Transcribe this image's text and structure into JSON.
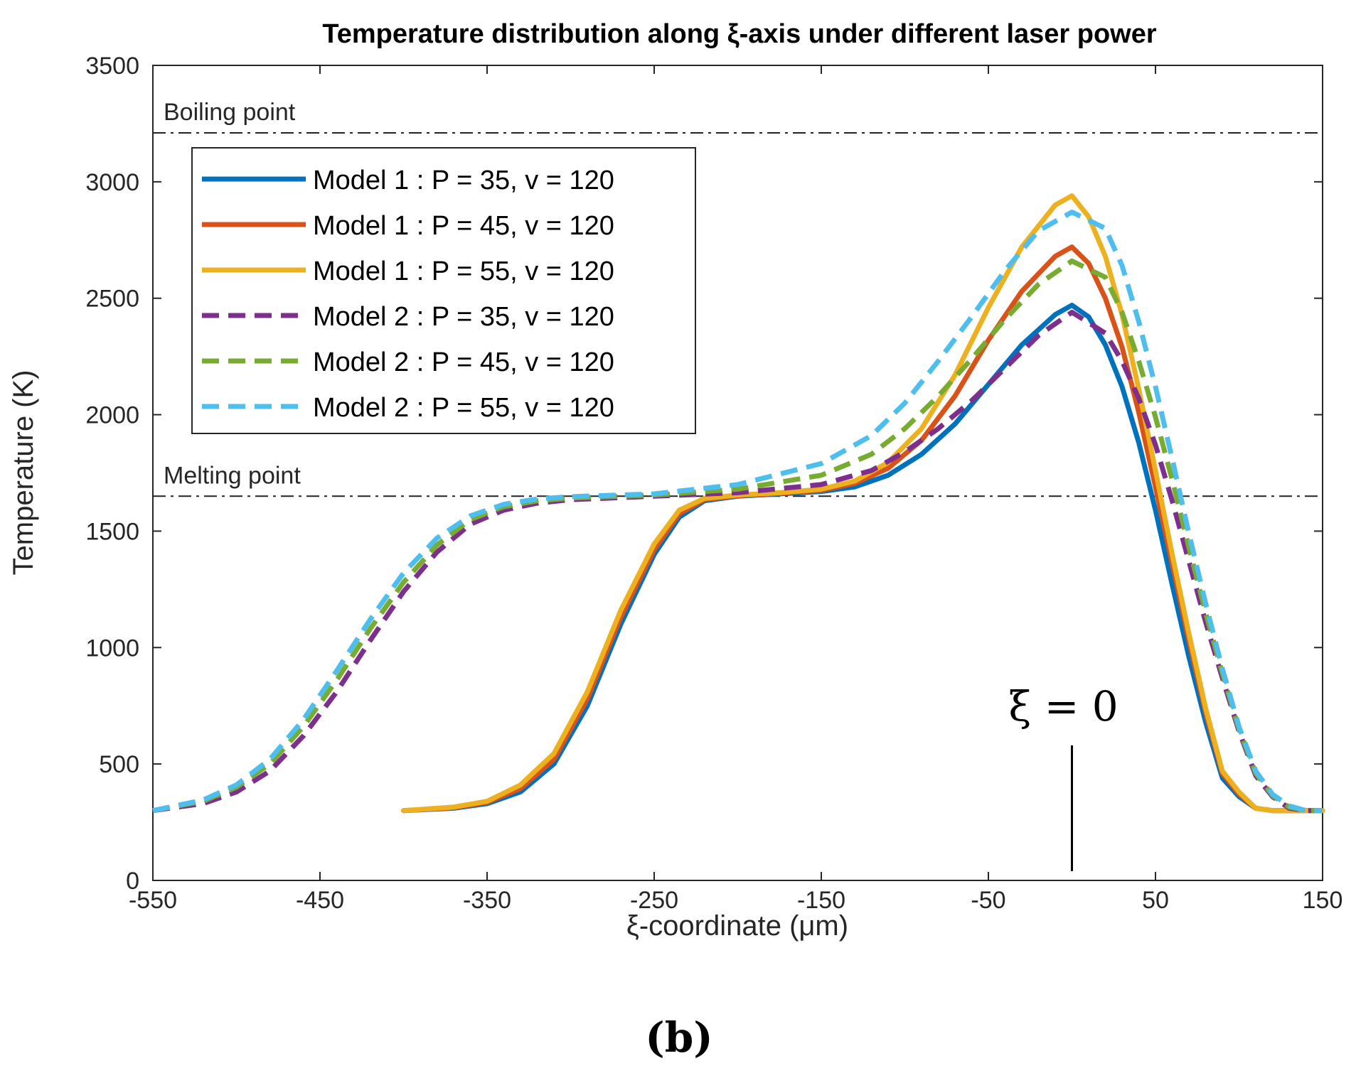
{
  "chart_data": {
    "type": "line",
    "title": "Temperature distribution along ξ-axis under different laser power",
    "xlabel": "ξ-coordinate (μm)",
    "ylabel": "Temperature (K)",
    "xlim": [
      -550,
      150
    ],
    "ylim": [
      0,
      3500
    ],
    "xticks": [
      -550,
      -450,
      -350,
      -250,
      -150,
      -50,
      50,
      150
    ],
    "yticks": [
      0,
      500,
      1000,
      1500,
      2000,
      2500,
      3000,
      3500
    ],
    "grid": false,
    "legend_position": "top-left",
    "reference_lines": [
      {
        "label": "Boiling point",
        "y": 3210
      },
      {
        "label": "Melting point",
        "y": 1650
      }
    ],
    "annotation": {
      "text": "ξ = 0",
      "x": 0,
      "marker_y_range": [
        40,
        580
      ]
    },
    "subfigure_label": "(b)",
    "series": [
      {
        "name": "Model 1 : P = 35, v = 120",
        "style": "solid",
        "color": "#0072BD",
        "x": [
          -400,
          -370,
          -350,
          -330,
          -310,
          -290,
          -270,
          -250,
          -235,
          -220,
          -200,
          -175,
          -150,
          -130,
          -110,
          -90,
          -70,
          -50,
          -30,
          -10,
          0,
          10,
          20,
          30,
          40,
          50,
          60,
          70,
          80,
          90,
          100,
          110,
          120,
          130,
          150
        ],
        "y": [
          300,
          310,
          330,
          380,
          500,
          750,
          1100,
          1400,
          1560,
          1630,
          1650,
          1660,
          1670,
          1690,
          1740,
          1830,
          1960,
          2130,
          2300,
          2430,
          2470,
          2420,
          2300,
          2120,
          1880,
          1590,
          1270,
          960,
          680,
          440,
          360,
          310,
          300,
          300,
          300
        ]
      },
      {
        "name": "Model 1 : P = 45, v = 120",
        "style": "solid",
        "color": "#D95319",
        "x": [
          -400,
          -370,
          -350,
          -330,
          -310,
          -290,
          -270,
          -250,
          -235,
          -220,
          -200,
          -175,
          -150,
          -130,
          -110,
          -90,
          -70,
          -50,
          -30,
          -10,
          0,
          10,
          20,
          30,
          40,
          50,
          60,
          70,
          80,
          90,
          100,
          110,
          120,
          130,
          150
        ],
        "y": [
          300,
          312,
          335,
          395,
          520,
          780,
          1130,
          1420,
          1575,
          1635,
          1652,
          1662,
          1675,
          1705,
          1770,
          1890,
          2080,
          2320,
          2530,
          2680,
          2720,
          2650,
          2500,
          2290,
          2010,
          1690,
          1360,
          1030,
          720,
          460,
          370,
          310,
          300,
          300,
          300
        ]
      },
      {
        "name": "Model 1 : P = 55, v = 120",
        "style": "solid",
        "color": "#EDB120",
        "x": [
          -400,
          -370,
          -350,
          -330,
          -310,
          -290,
          -270,
          -250,
          -235,
          -220,
          -200,
          -175,
          -150,
          -130,
          -110,
          -90,
          -70,
          -50,
          -30,
          -10,
          0,
          10,
          20,
          30,
          40,
          50,
          60,
          70,
          80,
          90,
          100,
          110,
          120,
          130,
          150
        ],
        "y": [
          300,
          315,
          340,
          410,
          545,
          810,
          1160,
          1445,
          1590,
          1640,
          1655,
          1665,
          1680,
          1715,
          1795,
          1940,
          2170,
          2460,
          2720,
          2900,
          2940,
          2850,
          2680,
          2430,
          2110,
          1760,
          1400,
          1060,
          740,
          470,
          380,
          310,
          300,
          300,
          300
        ]
      },
      {
        "name": "Model 2 : P = 35, v = 120",
        "style": "dashed",
        "color": "#7E2F8E",
        "x": [
          -550,
          -520,
          -500,
          -480,
          -460,
          -440,
          -420,
          -400,
          -380,
          -360,
          -340,
          -320,
          -300,
          -250,
          -200,
          -150,
          -120,
          -100,
          -80,
          -60,
          -40,
          -20,
          0,
          20,
          30,
          40,
          50,
          60,
          70,
          80,
          90,
          100,
          110,
          120,
          130,
          140,
          150
        ],
        "y": [
          300,
          330,
          380,
          470,
          620,
          810,
          1030,
          1240,
          1410,
          1530,
          1590,
          1620,
          1635,
          1650,
          1665,
          1700,
          1760,
          1840,
          1940,
          2060,
          2200,
          2340,
          2440,
          2350,
          2230,
          2070,
          1870,
          1630,
          1370,
          1110,
          870,
          640,
          450,
          360,
          310,
          300,
          300
        ]
      },
      {
        "name": "Model 2 : P = 45, v = 120",
        "style": "dashed",
        "color": "#77AC30",
        "x": [
          -550,
          -520,
          -500,
          -480,
          -460,
          -440,
          -420,
          -400,
          -380,
          -360,
          -340,
          -320,
          -300,
          -250,
          -200,
          -150,
          -120,
          -100,
          -80,
          -60,
          -40,
          -20,
          0,
          20,
          30,
          40,
          50,
          60,
          70,
          80,
          90,
          100,
          110,
          120,
          130,
          140,
          150
        ],
        "y": [
          300,
          340,
          400,
          500,
          660,
          860,
          1080,
          1280,
          1440,
          1550,
          1605,
          1630,
          1642,
          1655,
          1680,
          1740,
          1830,
          1940,
          2080,
          2240,
          2410,
          2560,
          2660,
          2590,
          2440,
          2230,
          1990,
          1720,
          1430,
          1150,
          890,
          650,
          460,
          365,
          315,
          300,
          300
        ]
      },
      {
        "name": "Model 2 : P = 55, v = 120",
        "style": "dashed",
        "color": "#4DBEEE",
        "x": [
          -550,
          -520,
          -500,
          -480,
          -460,
          -440,
          -420,
          -400,
          -380,
          -360,
          -340,
          -320,
          -300,
          -250,
          -200,
          -150,
          -120,
          -100,
          -80,
          -60,
          -40,
          -20,
          0,
          20,
          30,
          40,
          50,
          60,
          70,
          80,
          90,
          100,
          110,
          120,
          130,
          140,
          150
        ],
        "y": [
          300,
          345,
          410,
          520,
          690,
          900,
          1120,
          1320,
          1470,
          1565,
          1615,
          1638,
          1648,
          1660,
          1700,
          1790,
          1910,
          2050,
          2230,
          2420,
          2620,
          2790,
          2870,
          2800,
          2640,
          2400,
          2120,
          1810,
          1490,
          1190,
          910,
          660,
          470,
          370,
          320,
          300,
          300
        ]
      }
    ]
  }
}
